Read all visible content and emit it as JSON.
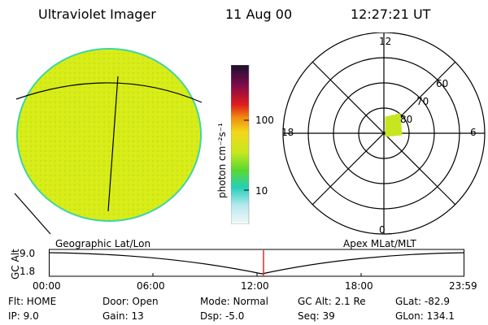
{
  "header": {
    "instrument": "Ultraviolet Imager",
    "date": "11 Aug 00",
    "time": "12:27:21 UT"
  },
  "colorbar": {
    "label": "photon cm⁻²s⁻¹",
    "ticks": [
      "100",
      "10"
    ]
  },
  "polar": {
    "mlt_labels": [
      "12",
      "18",
      "6",
      "0"
    ],
    "lat_labels": [
      "60",
      "70",
      "80"
    ]
  },
  "timeline": {
    "left_label": "Geographic Lat/Lon",
    "right_label": "Apex MLat/MLT",
    "axis_label": "GC Alt",
    "y_ticks": [
      "9.0",
      "1.8"
    ],
    "x_ticks": [
      "00:00",
      "06:00",
      "12:00",
      "18:00",
      "23:59"
    ]
  },
  "status": {
    "row1": [
      "Flt: HOME",
      "Door: Open",
      "Mode: Normal",
      "GC Alt: 2.1 Re",
      "GLat: -82.9"
    ],
    "row2": [
      "IP:  9.0",
      "Gain: 13",
      "Dsp:   -5.0",
      "Seq: 39",
      "GLon: 134.1"
    ]
  },
  "colors": {
    "globe_fill": "#d8ec18",
    "globe_edge": "#3ed6a0",
    "polar_patch": "#c8e620",
    "time_marker": "#e11b1b"
  }
}
